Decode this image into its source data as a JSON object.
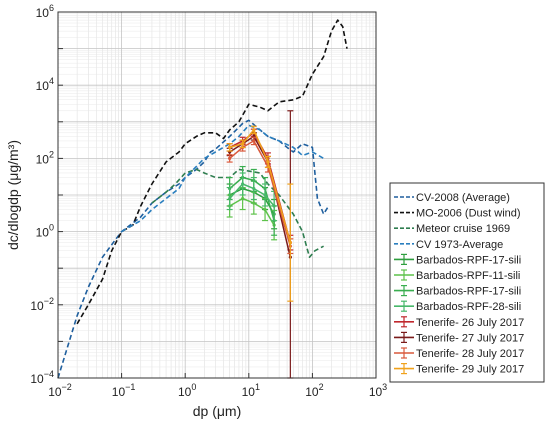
{
  "chart_data": {
    "type": "line",
    "xscale": "log",
    "yscale": "log",
    "xlim": [
      0.01,
      1000
    ],
    "ylim": [
      0.0001,
      1000000
    ],
    "xlabel": "dp (μm)",
    "ylabel": "dc/dlogdp (μg/m³)",
    "grid": true,
    "legend_position": "right",
    "x_ticks": [
      {
        "base": "10",
        "exp": "−2"
      },
      {
        "base": "10",
        "exp": "−1"
      },
      {
        "base": "10",
        "exp": "0"
      },
      {
        "base": "10",
        "exp": "1"
      },
      {
        "base": "10",
        "exp": "2"
      },
      {
        "base": "10",
        "exp": "3"
      }
    ],
    "y_ticks": [
      {
        "base": "10",
        "exp": "−4"
      },
      {
        "base": "10",
        "exp": "−2"
      },
      {
        "base": "10",
        "exp": "0"
      },
      {
        "base": "10",
        "exp": "2"
      },
      {
        "base": "10",
        "exp": "4"
      },
      {
        "base": "10",
        "exp": "6"
      }
    ],
    "series": [
      {
        "name": "CV-2008 (Average)",
        "color": "#1f5f9e",
        "style": "dashed",
        "errorbars": false,
        "x": [
          0.01,
          0.02,
          0.03,
          0.05,
          0.08,
          0.1,
          0.2,
          0.3,
          0.5,
          0.8,
          1.0,
          1.5,
          2.0,
          2.5,
          3.0,
          5,
          8,
          10,
          15,
          20,
          30,
          40,
          50,
          70,
          100,
          120,
          150,
          180
        ],
        "y": [
          0.0001,
          0.005,
          0.03,
          0.2,
          0.6,
          1.0,
          2.5,
          6,
          12,
          20,
          30,
          50,
          80,
          150,
          180,
          400,
          900,
          1100,
          600,
          400,
          300,
          200,
          150,
          250,
          200,
          8,
          3,
          5
        ]
      },
      {
        "name": "MO-2006 (Dust wind)",
        "color": "#111111",
        "style": "dashed",
        "errorbars": false,
        "x": [
          0.02,
          0.03,
          0.05,
          0.07,
          0.1,
          0.15,
          0.2,
          0.3,
          0.5,
          0.8,
          1.0,
          1.5,
          2,
          3,
          4,
          5,
          7,
          10,
          15,
          20,
          30,
          50,
          70,
          100,
          150,
          200,
          250,
          300,
          350
        ],
        "y": [
          0.003,
          0.01,
          0.05,
          0.3,
          1.0,
          1.5,
          5,
          20,
          80,
          150,
          250,
          400,
          500,
          500,
          350,
          600,
          1000,
          3000,
          2500,
          2000,
          3500,
          4000,
          5000,
          20000,
          60000,
          300000,
          600000,
          400000,
          100000
        ]
      },
      {
        "name": "Meteor cruise 1969",
        "color": "#2e7d4f",
        "style": "dashed",
        "errorbars": false,
        "x": [
          0.3,
          0.5,
          0.7,
          1.0,
          1.5,
          2.0,
          3,
          5,
          7,
          10,
          15,
          20,
          30,
          50,
          70,
          90,
          110,
          150
        ],
        "y": [
          6,
          12,
          20,
          40,
          50,
          40,
          30,
          30,
          50,
          45,
          40,
          20,
          10,
          3,
          1,
          0.2,
          0.3,
          0.4
        ]
      },
      {
        "name": "CV 1973-Average",
        "color": "#2a7fbf",
        "style": "dashed",
        "errorbars": false,
        "x": [
          0.1,
          0.2,
          0.3,
          0.5,
          0.8,
          1.0,
          1.5,
          2.0,
          3.0,
          4,
          5,
          7,
          10,
          15,
          20,
          30,
          50,
          70,
          100,
          150
        ],
        "y": [
          1.0,
          2,
          4,
          8,
          15,
          30,
          60,
          100,
          150,
          200,
          250,
          400,
          800,
          600,
          400,
          300,
          200,
          120,
          150,
          100
        ]
      },
      {
        "name": "Barbados-RPF-17-sili",
        "color": "#2e9e3e",
        "style": "solid",
        "errorbars": true,
        "x": [
          5,
          8,
          12,
          18,
          25
        ],
        "y": [
          10,
          15,
          12,
          8,
          3
        ],
        "err": [
          0.3,
          0.3,
          0.3,
          0.3,
          0.4
        ]
      },
      {
        "name": "Barbados-RPF-11-sili",
        "color": "#5dc24a",
        "style": "solid",
        "errorbars": true,
        "x": [
          5,
          8,
          12,
          18,
          25
        ],
        "y": [
          5,
          8,
          6,
          4,
          1.5
        ],
        "err": [
          0.3,
          0.3,
          0.3,
          0.3,
          0.4
        ]
      },
      {
        "name": "Barbados-RPF-17-sili",
        "color": "#3aae50",
        "style": "solid",
        "errorbars": true,
        "x": [
          5,
          8,
          12,
          18,
          25
        ],
        "y": [
          15,
          30,
          25,
          15,
          2
        ],
        "err": [
          0.3,
          0.3,
          0.3,
          0.3,
          0.4
        ]
      },
      {
        "name": "Barbados-RPF-28-sili",
        "color": "#47b86a",
        "style": "solid",
        "errorbars": true,
        "x": [
          5,
          8,
          12,
          18,
          25
        ],
        "y": [
          8,
          20,
          15,
          10,
          5
        ],
        "err": [
          0.3,
          0.3,
          0.3,
          0.3,
          0.4
        ]
      },
      {
        "name": "Tenerife- 26 July 2017",
        "color": "#c0282d",
        "style": "solid",
        "errorbars": true,
        "x": [
          5,
          8,
          12,
          20,
          45
        ],
        "y": [
          200,
          300,
          500,
          100,
          0.5
        ],
        "err": [
          0.1,
          0.1,
          0.1,
          0.15,
          0.2
        ]
      },
      {
        "name": "Tenerife- 27 July 2017",
        "color": "#7a1a1a",
        "style": "solid",
        "errorbars": true,
        "x": [
          5,
          8,
          12,
          20,
          45
        ],
        "y": [
          150,
          250,
          400,
          80,
          0.2
        ],
        "err": [
          0.1,
          0.1,
          0.1,
          0.15,
          4.0
        ]
      },
      {
        "name": "Tenerife- 28 July 2017",
        "color": "#d9583b",
        "style": "solid",
        "errorbars": true,
        "x": [
          5,
          8,
          12,
          20,
          45
        ],
        "y": [
          100,
          200,
          300,
          60,
          0.4
        ],
        "err": [
          0.1,
          0.1,
          0.1,
          0.15,
          0.2
        ]
      },
      {
        "name": "Tenerife- 29 July 2017",
        "color": "#f0a21c",
        "style": "solid",
        "errorbars": true,
        "x": [
          5,
          8,
          12,
          20,
          45
        ],
        "y": [
          200,
          250,
          600,
          80,
          0.5
        ],
        "err": [
          0.1,
          0.1,
          0.1,
          0.15,
          1.6
        ]
      }
    ]
  }
}
